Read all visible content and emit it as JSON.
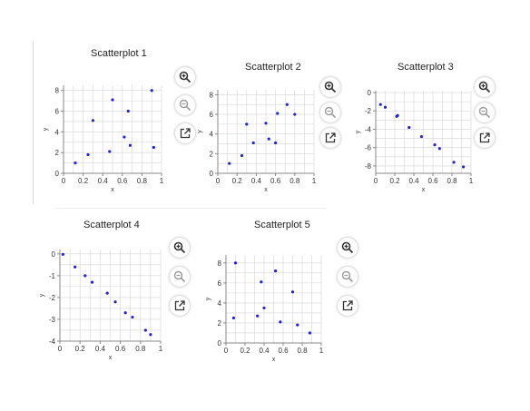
{
  "chart_data": [
    {
      "type": "scatter",
      "title": "Scatterplot 1",
      "xlabel": "x",
      "ylabel": "y",
      "xlim": [
        0,
        1
      ],
      "ylim": [
        0,
        8.5
      ],
      "xticks": [
        0,
        0.2,
        0.4,
        0.6,
        0.8,
        1
      ],
      "xtick_labels": [
        "0",
        "0.2",
        "0.4",
        "0.6",
        "0.8",
        "1"
      ],
      "yticks": [
        0,
        2,
        4,
        6,
        8
      ],
      "ytick_labels": [
        "0",
        "2",
        "4",
        "6",
        "8"
      ],
      "grid": true,
      "x": [
        0.12,
        0.25,
        0.3,
        0.47,
        0.5,
        0.62,
        0.66,
        0.68,
        0.9,
        0.92
      ],
      "y": [
        1.0,
        1.8,
        5.1,
        2.1,
        7.1,
        3.5,
        6.0,
        2.7,
        8.0,
        2.5
      ]
    },
    {
      "type": "scatter",
      "title": "Scatterplot 2",
      "xlabel": "x",
      "ylabel": "y",
      "xlim": [
        0,
        1
      ],
      "ylim": [
        0,
        8.5
      ],
      "xticks": [
        0,
        0.2,
        0.4,
        0.6,
        0.8,
        1
      ],
      "xtick_labels": [
        "0",
        "0.2",
        "0.4",
        "0.6",
        "0.8",
        "1"
      ],
      "yticks": [
        0,
        2,
        4,
        6,
        8
      ],
      "ytick_labels": [
        "0",
        "2",
        "4",
        "6",
        "8"
      ],
      "grid": true,
      "x": [
        0.12,
        0.25,
        0.3,
        0.37,
        0.5,
        0.53,
        0.6,
        0.62,
        0.72,
        0.8
      ],
      "y": [
        1.0,
        1.8,
        5.0,
        3.1,
        5.1,
        3.5,
        3.1,
        6.1,
        7.0,
        6.0
      ]
    },
    {
      "type": "scatter",
      "title": "Scatterplot 3",
      "xlabel": "x",
      "ylabel": "y",
      "xlim": [
        0,
        1
      ],
      "ylim": [
        -8.8,
        0.2
      ],
      "xticks": [
        0,
        0.2,
        0.4,
        0.6,
        0.8,
        1
      ],
      "xtick_labels": [
        "0",
        "0.2",
        "0.4",
        "0.6",
        "0.8",
        "1"
      ],
      "yticks": [
        0,
        -2,
        -4,
        -6,
        -8
      ],
      "ytick_labels": [
        "0",
        "-2",
        "-4",
        "-6",
        "-8"
      ],
      "grid": true,
      "x": [
        0.05,
        0.1,
        0.22,
        0.23,
        0.35,
        0.48,
        0.62,
        0.67,
        0.82,
        0.92
      ],
      "y": [
        -1.3,
        -1.6,
        -2.6,
        -2.5,
        -3.8,
        -4.8,
        -5.7,
        -6.1,
        -7.6,
        -8.1
      ]
    },
    {
      "type": "scatter",
      "title": "Scatterplot 4",
      "xlabel": "x",
      "ylabel": "y",
      "xlim": [
        0,
        1
      ],
      "ylim": [
        -4,
        0.2
      ],
      "xticks": [
        0,
        0.2,
        0.4,
        0.6,
        0.8,
        1
      ],
      "xtick_labels": [
        "0",
        "0.2",
        "0.4",
        "0.6",
        "0.8",
        "1"
      ],
      "yticks": [
        0,
        -1,
        -2,
        -3,
        -4
      ],
      "ytick_labels": [
        "0",
        "-1",
        "-2",
        "-3",
        "-4"
      ],
      "grid": true,
      "x": [
        0.03,
        0.15,
        0.25,
        0.32,
        0.47,
        0.55,
        0.65,
        0.72,
        0.85,
        0.9
      ],
      "y": [
        -0.02,
        -0.6,
        -1.0,
        -1.3,
        -1.8,
        -2.2,
        -2.7,
        -2.9,
        -3.5,
        -3.7
      ]
    },
    {
      "type": "scatter",
      "title": "Scatterplot 5",
      "xlabel": "x",
      "ylabel": "y",
      "xlim": [
        0,
        1
      ],
      "ylim": [
        0,
        8.8
      ],
      "xticks": [
        0,
        0.2,
        0.4,
        0.6,
        0.8,
        1
      ],
      "xtick_labels": [
        "0",
        "0.2",
        "0.4",
        "0.6",
        "0.8",
        "1"
      ],
      "yticks": [
        0,
        2,
        4,
        6,
        8
      ],
      "ytick_labels": [
        "0",
        "2",
        "4",
        "6",
        "8"
      ],
      "grid": true,
      "x": [
        0.08,
        0.1,
        0.33,
        0.37,
        0.4,
        0.52,
        0.57,
        0.7,
        0.75,
        0.88
      ],
      "y": [
        2.5,
        8.0,
        2.7,
        6.1,
        3.5,
        7.2,
        2.1,
        5.1,
        1.8,
        1.0
      ]
    }
  ],
  "colors": {
    "point": "#2424c8",
    "grid": "#d4d4d4",
    "axis": "#888888",
    "icon": "#333333"
  },
  "icons": [
    "zoom-in-icon",
    "zoom-out-icon",
    "open-external-icon"
  ]
}
